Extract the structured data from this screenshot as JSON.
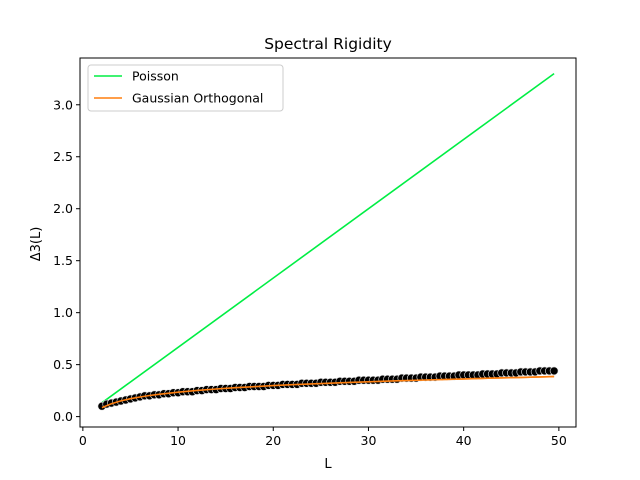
{
  "chart_data": {
    "type": "line",
    "title": "Spectral Rigidity",
    "xlabel": "L",
    "ylabel": "Δ3(L)",
    "xlim": [
      -0.3,
      51.8
    ],
    "ylim": [
      -0.1,
      3.45
    ],
    "xticks": [
      0,
      10,
      20,
      30,
      40,
      50
    ],
    "yticks": [
      0.0,
      0.5,
      1.0,
      1.5,
      2.0,
      2.5,
      3.0
    ],
    "grid": false,
    "legend": "upper left",
    "series": [
      {
        "name": "Poisson",
        "kind": "line",
        "color": "#00ee44",
        "x": [
          2,
          49.5
        ],
        "y": [
          0.133,
          3.3
        ]
      },
      {
        "name": "Gaussian Orthogonal",
        "kind": "line",
        "color": "#ff7f0e",
        "x": [
          2,
          3,
          4,
          5,
          6,
          7,
          8,
          10,
          12,
          14,
          16,
          18,
          20,
          22,
          25,
          28,
          30,
          33,
          36,
          40,
          43,
          46,
          49.5
        ],
        "y": [
          0.087,
          0.124,
          0.151,
          0.172,
          0.189,
          0.203,
          0.215,
          0.235,
          0.252,
          0.266,
          0.278,
          0.288,
          0.298,
          0.307,
          0.318,
          0.329,
          0.335,
          0.344,
          0.352,
          0.363,
          0.37,
          0.377,
          0.385
        ]
      },
      {
        "name": "",
        "kind": "scatter",
        "color": "#000000",
        "edgecolor": "#e8e8e8",
        "x": [
          2,
          2.5,
          3,
          3.5,
          4,
          4.5,
          5,
          5.5,
          6,
          6.5,
          7,
          7.5,
          8,
          8.5,
          9,
          9.5,
          10,
          10.5,
          11,
          11.5,
          12,
          12.5,
          13,
          13.5,
          14,
          14.5,
          15,
          15.5,
          16,
          16.5,
          17,
          17.5,
          18,
          18.5,
          19,
          19.5,
          20,
          20.5,
          21,
          21.5,
          22,
          22.5,
          23,
          23.5,
          24,
          24.5,
          25,
          25.5,
          26,
          26.5,
          27,
          27.5,
          28,
          28.5,
          29,
          29.5,
          30,
          30.5,
          31,
          31.5,
          32,
          32.5,
          33,
          33.5,
          34,
          34.5,
          35,
          35.5,
          36,
          36.5,
          37,
          37.5,
          38,
          38.5,
          39,
          39.5,
          40,
          40.5,
          41,
          41.5,
          42,
          42.5,
          43,
          43.5,
          44,
          44.5,
          45,
          45.5,
          46,
          46.5,
          47,
          47.5,
          48,
          48.5,
          49,
          49.5
        ],
        "y": [
          0.1,
          0.12,
          0.13,
          0.14,
          0.15,
          0.16,
          0.17,
          0.18,
          0.19,
          0.2,
          0.2,
          0.21,
          0.21,
          0.22,
          0.22,
          0.23,
          0.23,
          0.24,
          0.24,
          0.24,
          0.25,
          0.25,
          0.26,
          0.26,
          0.26,
          0.27,
          0.27,
          0.27,
          0.28,
          0.28,
          0.28,
          0.29,
          0.29,
          0.29,
          0.29,
          0.3,
          0.3,
          0.3,
          0.31,
          0.31,
          0.31,
          0.31,
          0.32,
          0.32,
          0.32,
          0.32,
          0.33,
          0.33,
          0.33,
          0.33,
          0.34,
          0.34,
          0.34,
          0.34,
          0.35,
          0.35,
          0.35,
          0.35,
          0.35,
          0.36,
          0.36,
          0.36,
          0.36,
          0.37,
          0.37,
          0.37,
          0.37,
          0.38,
          0.38,
          0.38,
          0.38,
          0.39,
          0.39,
          0.39,
          0.39,
          0.4,
          0.4,
          0.4,
          0.4,
          0.4,
          0.41,
          0.41,
          0.41,
          0.41,
          0.42,
          0.42,
          0.42,
          0.42,
          0.43,
          0.43,
          0.43,
          0.43,
          0.44,
          0.44,
          0.44,
          0.44
        ]
      }
    ]
  }
}
